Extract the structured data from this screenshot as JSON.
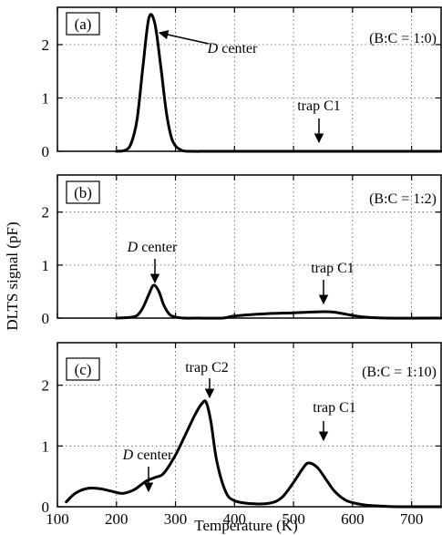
{
  "chart_data": {
    "type": "line",
    "xlabel": "Temperature (K)",
    "ylabel": "DLTS signal (pF)",
    "xlim": [
      100,
      750
    ],
    "x_ticks": [
      100,
      200,
      300,
      400,
      500,
      600,
      700
    ],
    "ylim": [
      0,
      2.7
    ],
    "y_ticks": [
      0,
      1,
      2
    ],
    "grid": "dotted",
    "panels": [
      {
        "label": "(a)",
        "ratio": "(B:C = 1:0)",
        "series": [
          {
            "x": [
              200,
              215,
              225,
              235,
              245,
              255,
              265,
              275,
              285,
              295,
              310,
              330,
              360,
              450,
              750
            ],
            "y": [
              0,
              0.02,
              0.15,
              0.6,
              1.6,
              2.5,
              2.4,
              1.6,
              0.7,
              0.2,
              0.02,
              0,
              0,
              0,
              0
            ]
          }
        ],
        "annotations": [
          {
            "text_italic": "D",
            "text": " center",
            "x": 255,
            "y": 2.5
          },
          {
            "text": "trap C1",
            "x": 550,
            "y": 0.3
          }
        ]
      },
      {
        "label": "(b)",
        "ratio": "(B:C = 1:2)",
        "series": [
          {
            "x": [
              200,
              220,
              235,
              245,
              255,
              263,
              272,
              280,
              290,
              300,
              315,
              340,
              380,
              400,
              450,
              500,
              550,
              570,
              590,
              620,
              660,
              750
            ],
            "y": [
              0,
              0.01,
              0.05,
              0.2,
              0.45,
              0.62,
              0.5,
              0.25,
              0.07,
              0.02,
              0,
              0,
              0,
              0.04,
              0.08,
              0.1,
              0.12,
              0.11,
              0.07,
              0.02,
              0,
              0
            ]
          }
        ],
        "annotations": [
          {
            "text_italic": "D",
            "text": " center",
            "x": 263,
            "y": 0.62
          },
          {
            "text": "trap C1",
            "x": 550,
            "y": 0.12
          }
        ]
      },
      {
        "label": "(c)",
        "ratio": "(B:C = 1:10)",
        "series": [
          {
            "x": [
              115,
              130,
              150,
              170,
              190,
              210,
              230,
              250,
              265,
              280,
              300,
              320,
              335,
              345,
              352,
              360,
              370,
              385,
              400,
              430,
              460,
              480,
              500,
              515,
              525,
              540,
              555,
              570,
              590,
              620,
              650,
              680,
              750
            ],
            "y": [
              0.08,
              0.22,
              0.3,
              0.3,
              0.26,
              0.22,
              0.28,
              0.42,
              0.48,
              0.55,
              0.85,
              1.25,
              1.55,
              1.7,
              1.72,
              1.4,
              0.75,
              0.25,
              0.1,
              0.05,
              0.06,
              0.15,
              0.4,
              0.62,
              0.72,
              0.65,
              0.45,
              0.25,
              0.1,
              0.03,
              0.01,
              0,
              0
            ]
          }
        ],
        "annotations": [
          {
            "text_italic": "D",
            "text": " center",
            "x": 265,
            "y": 0.5
          },
          {
            "text": "trap C2",
            "x": 352,
            "y": 1.72
          },
          {
            "text": "trap C1",
            "x": 525,
            "y": 0.72
          }
        ]
      }
    ]
  }
}
